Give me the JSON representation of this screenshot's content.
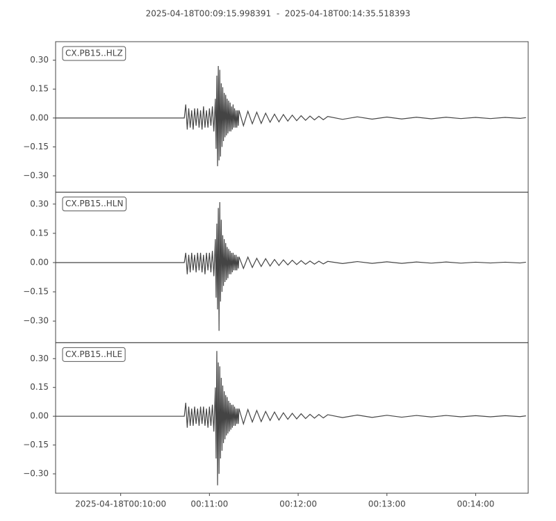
{
  "chart_data": [
    {
      "type": "line",
      "title": "2025-04-18T00:09:15.998391  -  2025-04-18T00:14:35.518393",
      "x": [
        15.998391,
        103,
        104,
        105,
        106,
        107,
        108,
        109,
        110,
        111,
        112,
        113,
        114,
        115,
        116,
        117,
        118,
        119,
        120,
        121,
        122,
        123,
        124,
        124.5,
        125,
        125.5,
        126,
        126.5,
        127,
        127.5,
        128,
        128.5,
        129,
        129.5,
        130,
        130.5,
        131,
        131.5,
        132,
        132.5,
        133,
        133.5,
        134,
        134.5,
        135,
        135.5,
        136,
        136.5,
        137,
        137.5,
        138,
        138.5,
        139,
        139.5,
        140,
        143,
        146,
        149,
        152,
        155,
        158,
        161,
        164,
        167,
        170,
        173,
        176,
        179,
        182,
        185,
        188,
        191,
        194,
        197,
        200,
        210,
        220,
        230,
        240,
        250,
        260,
        270,
        280,
        290,
        300,
        310,
        320,
        330,
        334
      ],
      "series": [
        {
          "name": "CX.PB15..HLZ",
          "color": "#444444",
          "values": [
            0,
            0,
            0.07,
            -0.06,
            0.05,
            -0.05,
            0.04,
            -0.06,
            0.05,
            -0.04,
            0.05,
            -0.05,
            0.04,
            -0.06,
            0.06,
            -0.05,
            0.04,
            -0.05,
            0.05,
            -0.04,
            0.06,
            -0.07,
            0.1,
            -0.16,
            0.22,
            -0.25,
            0.27,
            -0.22,
            0.25,
            -0.2,
            0.18,
            -0.15,
            0.16,
            -0.12,
            0.13,
            -0.1,
            0.12,
            -0.09,
            0.1,
            -0.08,
            0.09,
            -0.07,
            0.08,
            -0.07,
            0.06,
            -0.06,
            0.07,
            -0.05,
            0.05,
            -0.05,
            0.04,
            -0.05,
            0.04,
            -0.04,
            0.04,
            -0.04,
            0.035,
            -0.03,
            0.03,
            -0.028,
            0.025,
            -0.022,
            0.02,
            -0.02,
            0.018,
            -0.016,
            0.015,
            -0.014,
            0.012,
            -0.012,
            0.01,
            -0.01,
            0.009,
            -0.009,
            0.008,
            -0.007,
            0.006,
            -0.006,
            0.005,
            -0.005,
            0.004,
            -0.004,
            0.004,
            -0.003,
            0.003,
            -0.003,
            0.003,
            -0.002,
            0.002
          ]
        }
      ],
      "xlim": [
        15.998391,
        335.518393
      ],
      "ylim": [
        -0.385,
        0.396
      ],
      "yticks": [
        {
          "value": -0.3,
          "label": "−0.30"
        },
        {
          "value": -0.15,
          "label": "−0.15"
        },
        {
          "value": 0,
          "label": "0.00"
        },
        {
          "value": 0.15,
          "label": "0.15"
        },
        {
          "value": 0.3,
          "label": "0.30"
        }
      ]
    },
    {
      "type": "line",
      "x": [
        15.998391,
        103,
        104,
        105,
        106,
        107,
        108,
        109,
        110,
        111,
        112,
        113,
        114,
        115,
        116,
        117,
        118,
        119,
        120,
        121,
        122,
        123,
        124,
        124.5,
        125,
        125.5,
        126,
        126.5,
        127,
        127.5,
        128,
        128.5,
        129,
        129.5,
        130,
        130.5,
        131,
        131.5,
        132,
        132.5,
        133,
        133.5,
        134,
        134.5,
        135,
        135.5,
        136,
        136.5,
        137,
        137.5,
        138,
        138.5,
        139,
        139.5,
        140,
        143,
        146,
        149,
        152,
        155,
        158,
        161,
        164,
        167,
        170,
        173,
        176,
        179,
        182,
        185,
        188,
        191,
        194,
        197,
        200,
        210,
        220,
        230,
        240,
        250,
        260,
        270,
        280,
        290,
        300,
        310,
        320,
        330,
        334
      ],
      "series": [
        {
          "name": "CX.PB15..HLN",
          "color": "#444444",
          "values": [
            0,
            0,
            0.05,
            -0.06,
            0.04,
            -0.05,
            0.05,
            -0.04,
            0.04,
            -0.05,
            0.05,
            -0.04,
            0.05,
            -0.05,
            0.04,
            -0.06,
            0.05,
            -0.04,
            0.05,
            -0.05,
            0.06,
            -0.07,
            0.12,
            -0.18,
            0.2,
            -0.24,
            0.28,
            -0.35,
            0.31,
            -0.2,
            0.22,
            -0.15,
            0.14,
            -0.12,
            0.12,
            -0.1,
            0.1,
            -0.09,
            0.08,
            -0.08,
            0.07,
            -0.06,
            0.06,
            -0.06,
            0.05,
            -0.05,
            0.05,
            -0.04,
            0.04,
            -0.04,
            0.04,
            -0.04,
            0.03,
            -0.03,
            0.03,
            -0.03,
            0.028,
            -0.025,
            0.022,
            -0.02,
            0.02,
            -0.018,
            0.016,
            -0.015,
            0.014,
            -0.012,
            0.012,
            -0.01,
            0.01,
            -0.009,
            0.008,
            -0.008,
            0.007,
            -0.007,
            0.006,
            -0.005,
            0.005,
            -0.004,
            0.004,
            -0.004,
            0.003,
            -0.003,
            0.003,
            -0.003,
            0.002,
            -0.002,
            0.002,
            -0.002,
            0.002
          ]
        }
      ],
      "xlim": [
        15.998391,
        335.518393
      ],
      "ylim": [
        -0.411,
        0.361
      ],
      "yticks": [
        {
          "value": -0.3,
          "label": "−0.30"
        },
        {
          "value": -0.15,
          "label": "−0.15"
        },
        {
          "value": 0,
          "label": "0.00"
        },
        {
          "value": 0.15,
          "label": "0.15"
        },
        {
          "value": 0.3,
          "label": "0.30"
        }
      ]
    },
    {
      "type": "line",
      "x": [
        15.998391,
        103,
        104,
        105,
        106,
        107,
        108,
        109,
        110,
        111,
        112,
        113,
        114,
        115,
        116,
        117,
        118,
        119,
        120,
        121,
        122,
        123,
        124,
        124.5,
        125,
        125.5,
        126,
        126.5,
        127,
        127.5,
        128,
        128.5,
        129,
        129.5,
        130,
        130.5,
        131,
        131.5,
        132,
        132.5,
        133,
        133.5,
        134,
        134.5,
        135,
        135.5,
        136,
        136.5,
        137,
        137.5,
        138,
        138.5,
        139,
        139.5,
        140,
        143,
        146,
        149,
        152,
        155,
        158,
        161,
        164,
        167,
        170,
        173,
        176,
        179,
        182,
        185,
        188,
        191,
        194,
        197,
        200,
        210,
        220,
        230,
        240,
        250,
        260,
        270,
        280,
        290,
        300,
        310,
        320,
        330,
        334
      ],
      "series": [
        {
          "name": "CX.PB15..HLE",
          "color": "#444444",
          "values": [
            0,
            0,
            0.07,
            -0.06,
            0.05,
            -0.05,
            0.04,
            -0.05,
            0.05,
            -0.04,
            0.04,
            -0.05,
            0.05,
            -0.04,
            0.05,
            -0.05,
            0.04,
            -0.06,
            0.05,
            -0.05,
            0.06,
            -0.08,
            0.15,
            -0.22,
            0.34,
            -0.36,
            0.28,
            -0.3,
            0.26,
            -0.22,
            0.2,
            -0.18,
            0.16,
            -0.14,
            0.13,
            -0.12,
            0.11,
            -0.1,
            0.1,
            -0.09,
            0.08,
            -0.08,
            0.07,
            -0.07,
            0.06,
            -0.06,
            0.06,
            -0.05,
            0.05,
            -0.05,
            0.04,
            -0.04,
            0.04,
            -0.04,
            0.04,
            -0.04,
            0.035,
            -0.03,
            0.03,
            -0.028,
            0.025,
            -0.022,
            0.022,
            -0.02,
            0.018,
            -0.016,
            0.015,
            -0.014,
            0.013,
            -0.012,
            0.01,
            -0.01,
            0.009,
            -0.009,
            0.008,
            -0.007,
            0.006,
            -0.006,
            0.005,
            -0.005,
            0.004,
            -0.004,
            0.004,
            -0.003,
            0.003,
            -0.003,
            0.003,
            -0.002,
            0.002
          ]
        }
      ],
      "xlim": [
        15.998391,
        335.518393
      ],
      "ylim": [
        -0.401,
        0.383
      ],
      "yticks": [
        {
          "value": -0.3,
          "label": "−0.30"
        },
        {
          "value": -0.15,
          "label": "−0.15"
        },
        {
          "value": 0,
          "label": "0.00"
        },
        {
          "value": 0.15,
          "label": "0.15"
        },
        {
          "value": 0.3,
          "label": "0.30"
        }
      ],
      "xticks": [
        {
          "value": 60,
          "label": "2025-04-18T00:10:00"
        },
        {
          "value": 120,
          "label": "00:11:00"
        },
        {
          "value": 180,
          "label": "00:12:00"
        },
        {
          "value": 240,
          "label": "00:13:00"
        },
        {
          "value": 300,
          "label": "00:14:00"
        }
      ]
    }
  ]
}
